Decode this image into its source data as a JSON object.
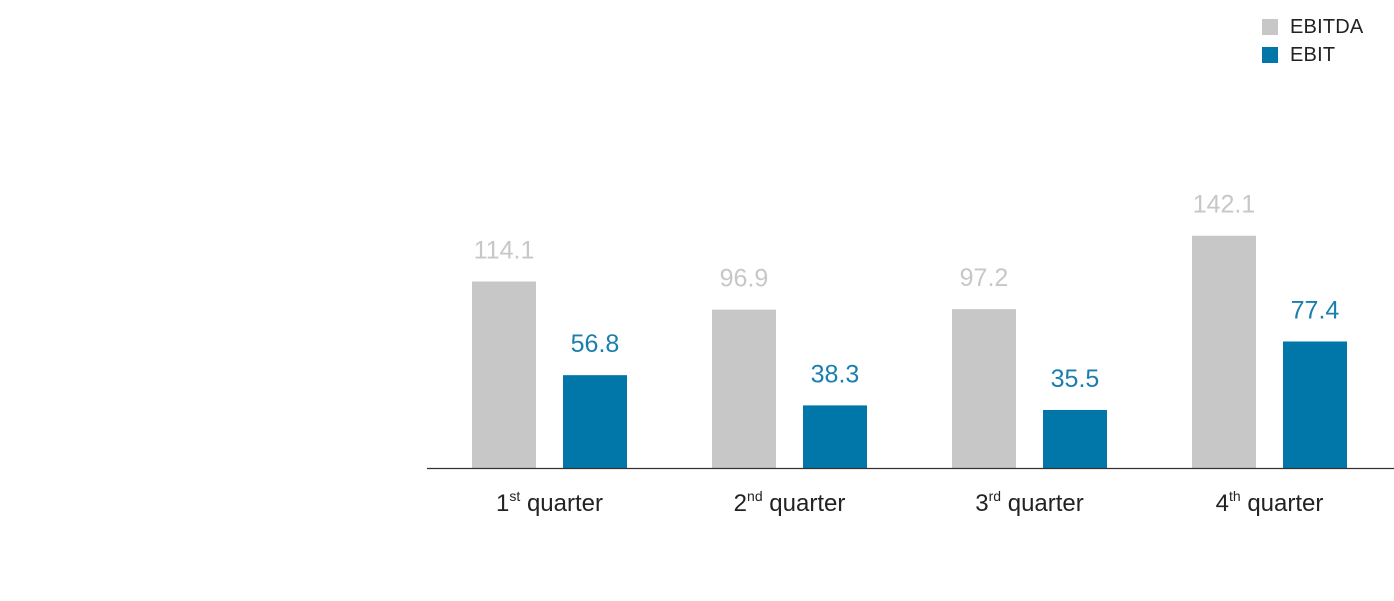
{
  "chart_data": {
    "type": "bar",
    "title": "",
    "xlabel": "",
    "ylabel": "",
    "ylim": [
      0,
      160
    ],
    "grid": false,
    "legend_position": "top-right",
    "categories": [
      {
        "num": "1",
        "sup": "st",
        "text": "quarter"
      },
      {
        "num": "2",
        "sup": "nd",
        "text": "quarter"
      },
      {
        "num": "3",
        "sup": "rd",
        "text": "quarter"
      },
      {
        "num": "4",
        "sup": "th",
        "text": "quarter"
      }
    ],
    "series": [
      {
        "name": "EBITDA",
        "color": "#c6c7c6",
        "label_color": "#c6c7c6",
        "values": [
          114.1,
          96.9,
          97.2,
          142.1
        ],
        "labels": [
          "114.1",
          "96.9",
          "97.2",
          "142.1"
        ]
      },
      {
        "name": "EBIT",
        "color": "#0077a8",
        "label_color": "#1a7fad",
        "values": [
          56.8,
          38.3,
          35.5,
          77.4
        ],
        "labels": [
          "56.8",
          "38.3",
          "35.5",
          "77.4"
        ]
      }
    ]
  },
  "colors": {
    "axis": "#333333",
    "tick_text": "#222222"
  }
}
